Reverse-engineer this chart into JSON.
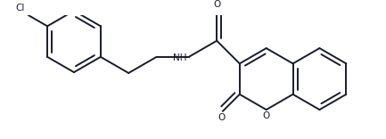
{
  "line_color": "#1a1a2e",
  "bg_color": "#ffffff",
  "lw": 1.4,
  "dbo": 0.013,
  "figsize": [
    4.33,
    1.56
  ],
  "dpi": 100,
  "r": 0.09,
  "xlim": [
    0.0,
    1.0
  ],
  "ylim": [
    0.02,
    0.38
  ]
}
